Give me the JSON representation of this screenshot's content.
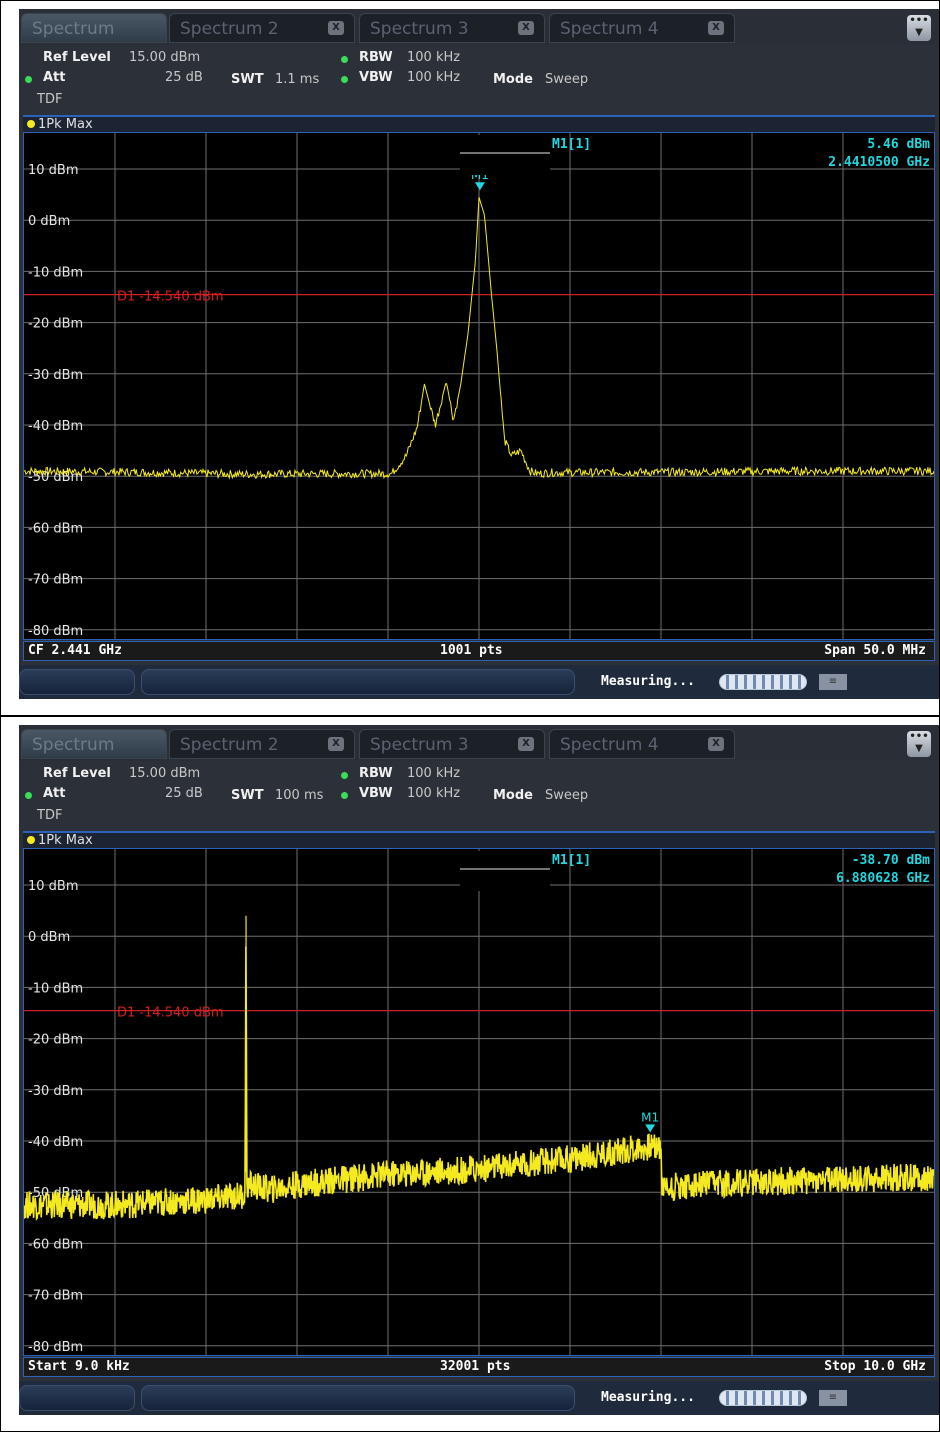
{
  "screens": [
    {
      "tabs": [
        {
          "label": "Spectrum",
          "active": true
        },
        {
          "label": "Spectrum 2",
          "close": "X"
        },
        {
          "label": "Spectrum 3",
          "close": "X"
        },
        {
          "label": "Spectrum 4",
          "close": "X"
        }
      ],
      "menu_icon": "menu-icon",
      "info": {
        "ref_level_label": "Ref Level",
        "ref_level_value": "15.00 dBm",
        "att_label": "Att",
        "att_value": "25 dB",
        "swt_label": "SWT",
        "swt_value": "1.1 ms",
        "rbw_label": "RBW",
        "rbw_value": "100 kHz",
        "vbw_label": "VBW",
        "vbw_value": "100 kHz",
        "mode_label": "Mode",
        "mode_value": "Sweep",
        "tdf": "TDF"
      },
      "trace_label": "1Pk Max",
      "marker": {
        "name": "M1[1]",
        "level": "5.46 dBm",
        "freq": "2.4410500 GHz",
        "tag": "M1"
      },
      "display_line": "D1  -14.540 dBm",
      "footer": {
        "left": "CF 2.441 GHz",
        "center": "1001 pts",
        "right": "Span 50.0 MHz"
      },
      "status": {
        "message": "Measuring..."
      },
      "chart_data": {
        "type": "line",
        "y_tick_labels": [
          "10 dBm",
          "0 dBm",
          "-10 dBm",
          "-20 dBm",
          "-30 dBm",
          "-40 dBm",
          "-50 dBm",
          "-60 dBm",
          "-70 dBm",
          "-80 dBm"
        ],
        "ylim": [
          -90,
          15
        ],
        "display_line_dbm": -14.54,
        "grid": true,
        "xlim": [
          2416.0,
          2466.0
        ],
        "x_unit": "MHz",
        "marker": {
          "x": 2441.05,
          "y": 5.46
        },
        "series": [
          {
            "color": "#f5ea20",
            "x": [
              2416.0,
              2422.0,
              2428.0,
              2434.0,
              2436.2,
              2437.0,
              2437.6,
              2438.0,
              2438.6,
              2439.2,
              2439.6,
              2440.0,
              2440.4,
              2440.8,
              2441.0,
              2441.3,
              2441.7,
              2442.0,
              2442.4,
              2442.8,
              2443.3,
              2443.8,
              2444.2,
              2445.0,
              2452.0,
              2458.0,
              2466.0
            ],
            "y": [
              -49.0,
              -49.2,
              -49.6,
              -49.5,
              -49.5,
              -46.0,
              -40.5,
              -32.0,
              -40.0,
              -31.5,
              -39.0,
              -32.0,
              -22.0,
              -8.0,
              4.5,
              1.0,
              -15.0,
              -26.0,
              -43.0,
              -46.0,
              -45.0,
              -49.0,
              -49.5,
              -49.3,
              -49.2,
              -49.0,
              -49.0
            ]
          }
        ]
      }
    },
    {
      "tabs": [
        {
          "label": "Spectrum",
          "active": true
        },
        {
          "label": "Spectrum 2",
          "close": "X"
        },
        {
          "label": "Spectrum 3",
          "close": "X"
        },
        {
          "label": "Spectrum 4",
          "close": "X"
        }
      ],
      "menu_icon": "menu-icon",
      "info": {
        "ref_level_label": "Ref Level",
        "ref_level_value": "15.00 dBm",
        "att_label": "Att",
        "att_value": "25 dB",
        "swt_label": "SWT",
        "swt_value": "100 ms",
        "rbw_label": "RBW",
        "rbw_value": "100 kHz",
        "vbw_label": "VBW",
        "vbw_value": "100 kHz",
        "mode_label": "Mode",
        "mode_value": "Sweep",
        "tdf": "TDF"
      },
      "trace_label": "1Pk Max",
      "marker": {
        "name": "M1[1]",
        "level": "-38.70 dBm",
        "freq": "6.880628 GHz",
        "tag": "M1"
      },
      "display_line": "D1  -14.540 dBm",
      "footer": {
        "left": "Start 9.0 kHz",
        "center": "32001 pts",
        "right": "Stop 10.0 GHz"
      },
      "status": {
        "message": "Measuring..."
      },
      "chart_data": {
        "type": "line",
        "y_tick_labels": [
          "10 dBm",
          "0 dBm",
          "-10 dBm",
          "-20 dBm",
          "-30 dBm",
          "-40 dBm",
          "-50 dBm",
          "-60 dBm",
          "-70 dBm",
          "-80 dBm"
        ],
        "ylim": [
          -90,
          15
        ],
        "display_line_dbm": -14.54,
        "grid": true,
        "xlim": [
          9e-06,
          10.0
        ],
        "x_unit": "GHz",
        "marker": {
          "x": 6.880628,
          "y": -38.7
        },
        "series": [
          {
            "color": "#f5ea20",
            "x": [
              0.0,
              1.0,
              2.0,
              2.43,
              2.44,
              2.45,
              2.46,
              2.7,
              3.0,
              4.0,
              5.0,
              6.0,
              6.9,
              7.0,
              7.01,
              8.0,
              9.0,
              10.0
            ],
            "y": [
              -52.5,
              -52.5,
              -51.5,
              -50.5,
              4.0,
              -50.0,
              -48.5,
              -49.5,
              -48.5,
              -46.5,
              -45.5,
              -43.5,
              -41.0,
              -41.0,
              -49.0,
              -48.0,
              -47.5,
              -47.0
            ]
          }
        ]
      }
    }
  ]
}
